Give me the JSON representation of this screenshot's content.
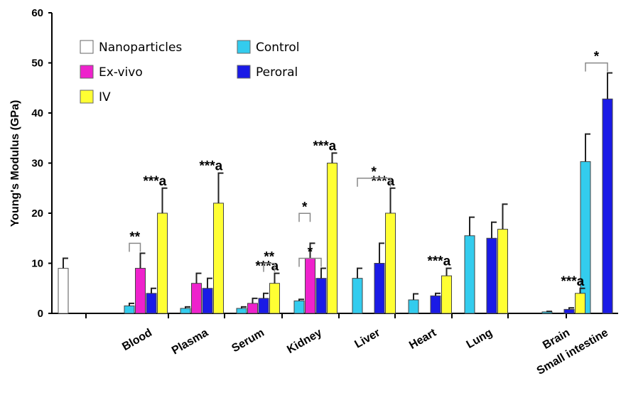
{
  "chart_data": {
    "type": "bar",
    "ylabel": "Young's Modulus (GPa)",
    "ylim": [
      0,
      60
    ],
    "yticks": [
      0,
      10,
      20,
      30,
      40,
      50,
      60
    ],
    "categories": [
      "",
      "Blood",
      "Plasma",
      "Serum",
      "Kidney",
      "Liver",
      "Heart",
      "Lung",
      "Brain",
      "Small intestine"
    ],
    "series": [
      {
        "name": "Nanoparticles",
        "color": "#ffffff",
        "values": [
          9,
          null,
          null,
          null,
          null,
          null,
          null,
          null,
          null,
          null
        ],
        "errors": [
          2,
          null,
          null,
          null,
          null,
          null,
          null,
          null,
          null,
          null
        ]
      },
      {
        "name": "Control",
        "color": "#33ccee",
        "values": [
          null,
          1.5,
          1,
          1,
          2.5,
          7,
          2.7,
          15.5,
          0.3,
          30.3
        ],
        "errors": [
          null,
          0.5,
          0.3,
          0.3,
          0.3,
          2,
          1.2,
          3.7,
          0.1,
          5.5
        ]
      },
      {
        "name": "Ex-vivo",
        "color": "#ee22cc",
        "values": [
          null,
          9,
          6,
          2,
          11,
          null,
          null,
          null,
          null,
          null
        ],
        "errors": [
          null,
          3,
          2,
          1,
          3,
          null,
          null,
          null,
          null,
          null
        ]
      },
      {
        "name": "Peroral",
        "color": "#1a1ae6",
        "values": [
          null,
          4,
          5,
          3,
          7,
          10,
          3.5,
          15,
          0.8,
          42.8
        ],
        "errors": [
          null,
          1,
          2,
          1,
          2,
          4,
          0.5,
          3.2,
          0.3,
          5.2
        ]
      },
      {
        "name": "IV",
        "color": "#ffff33",
        "values": [
          null,
          20,
          22,
          6,
          30,
          20,
          7.5,
          16.8,
          4,
          null
        ],
        "errors": [
          null,
          5,
          6,
          2,
          2,
          5,
          1.5,
          5,
          1,
          null
        ]
      }
    ],
    "annotations": [
      {
        "text": "***a",
        "category": "Blood",
        "series": "IV"
      },
      {
        "text": "***a",
        "category": "Plasma",
        "series": "IV"
      },
      {
        "text": "***a",
        "category": "Serum",
        "series": "IV"
      },
      {
        "text": "***a",
        "category": "Kidney",
        "series": "IV"
      },
      {
        "text": "***a",
        "category": "Liver",
        "series": "IV"
      },
      {
        "text": "***a",
        "category": "Heart",
        "series": "IV"
      },
      {
        "text": "***a",
        "category": "Brain",
        "series": "IV"
      }
    ],
    "significance_brackets": [
      {
        "text": "**",
        "category": "Blood",
        "from": "Control",
        "to": "Ex-vivo"
      },
      {
        "text": "**",
        "category": "Serum",
        "from": "Peroral",
        "to": "IV"
      },
      {
        "text": "*",
        "category": "Kidney",
        "from": "Control",
        "to": "Peroral"
      },
      {
        "text": "*",
        "category": "Kidney",
        "from": "Control",
        "to": "Ex-vivo"
      },
      {
        "text": "*",
        "category": "Liver",
        "from": "Control",
        "to": "IV"
      },
      {
        "text": "*",
        "category": "Small intestine",
        "from": "Control",
        "to": "Peroral"
      }
    ],
    "legend": {
      "placement": "top-left",
      "columns": 2
    },
    "grid": false
  }
}
